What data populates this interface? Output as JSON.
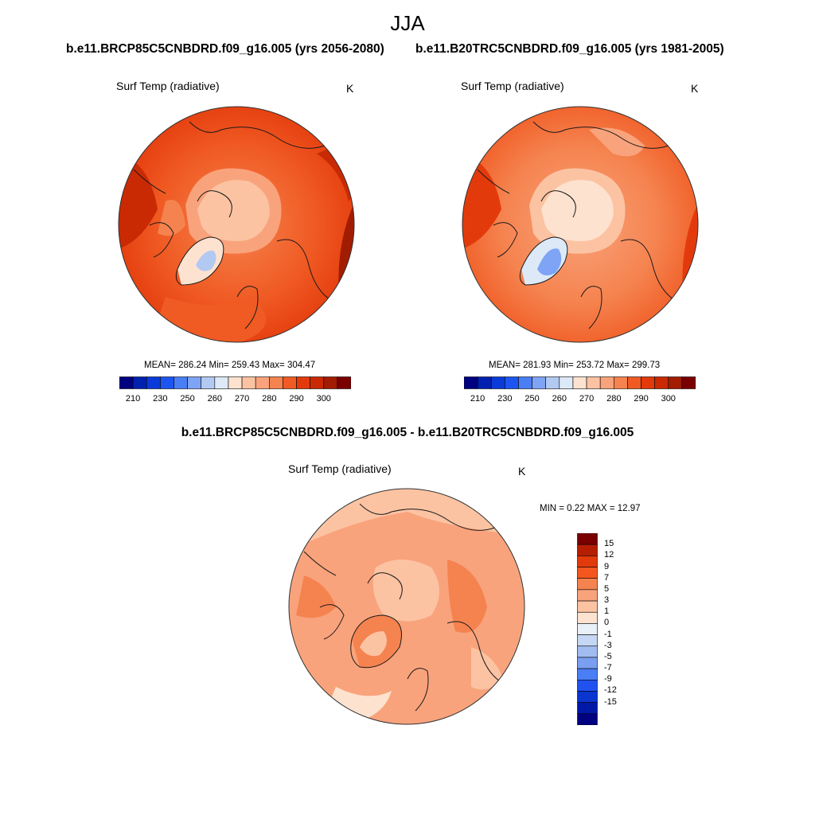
{
  "figure": {
    "title": "JJA",
    "left_case": "b.e11.BRCP85C5CNBDRD.f09_g16.005 (yrs 2056-2080)",
    "right_case": "b.e11.B20TRC5CNBDRD.f09_g16.005 (yrs 1981-2005)",
    "diff_title": "b.e11.BRCP85C5CNBDRD.f09_g16.005 - b.e11.B20TRC5CNBDRD.f09_g16.005"
  },
  "panels": {
    "left": {
      "variable": "Surf Temp (radiative)",
      "units": "K",
      "stats": "MEAN= 286.24  Min= 259.43  Max= 304.47"
    },
    "right": {
      "variable": "Surf Temp (radiative)",
      "units": "K",
      "stats": "MEAN= 281.93  Min= 253.72  Max= 299.73"
    },
    "diff": {
      "variable": "Surf Temp (radiative)",
      "units": "K",
      "stats": "MIN =   0.22 MAX =  12.97"
    }
  },
  "abs_colorbar": {
    "colors": [
      "#000080",
      "#0020b0",
      "#0a3ad8",
      "#1e55f0",
      "#4a7ef5",
      "#7fa4f5",
      "#b2c9f2",
      "#dde9f7",
      "#fde2cf",
      "#fcc3a3",
      "#f9a37c",
      "#f5834f",
      "#f05a23",
      "#e33a0c",
      "#c92a04",
      "#a21c02",
      "#7a0000"
    ],
    "ticks": [
      "210",
      "230",
      "250",
      "260",
      "270",
      "280",
      "290",
      "300"
    ]
  },
  "diff_colorbar": {
    "colors_top_down": [
      "#7a0000",
      "#b51e03",
      "#e33a0c",
      "#f5561e",
      "#f5834f",
      "#f9a37c",
      "#fcc3a3",
      "#fde2cf",
      "#e9f0f8",
      "#c5d7f2",
      "#a0bcf0",
      "#7a9ff0",
      "#4a7ef5",
      "#2152f0",
      "#0a35d0",
      "#0018a8",
      "#000080"
    ],
    "ticks_top_down": [
      "15",
      "12",
      "9",
      "7",
      "5",
      "3",
      "1",
      "0",
      "-1",
      "-3",
      "-5",
      "-7",
      "-9",
      "-12",
      "-15"
    ]
  }
}
